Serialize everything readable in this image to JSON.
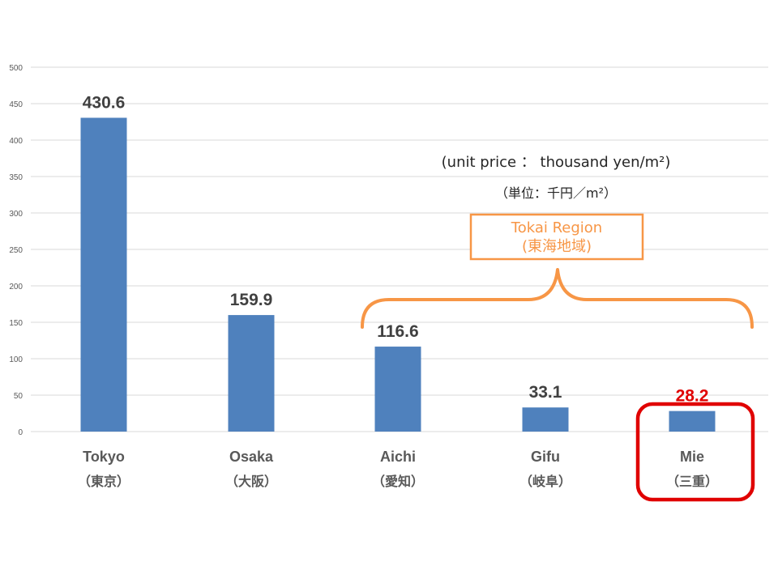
{
  "chart_data": {
    "type": "bar",
    "categories": [
      "Tokyo",
      "Osaka",
      "Aichi",
      "Gifu",
      "Mie"
    ],
    "categories_sub": [
      "（東京）",
      "（大阪）",
      "（愛知）",
      "（岐阜）",
      "（三重）"
    ],
    "values": [
      430.6,
      159.9,
      116.6,
      33.1,
      28.2
    ],
    "value_labels": [
      "430.6",
      "159.9",
      "116.6",
      "33.1",
      "28.2"
    ],
    "ylim": [
      0,
      500
    ],
    "yticks": [
      0,
      50,
      100,
      150,
      200,
      250,
      300,
      350,
      400,
      450,
      500
    ],
    "grid": true,
    "bar_color": "#4f81bd",
    "highlight_category": "Mie",
    "highlight_color": "#e00000",
    "annotations": {
      "unit_en": "(unit price ： thousand yen/m²)",
      "unit_ja": "（単位：千円／m²）",
      "region_en": "Tokai Region",
      "region_ja": "(東海地域)",
      "region_color": "#f79646",
      "region_categories": [
        "Aichi",
        "Gifu",
        "Mie"
      ]
    }
  }
}
